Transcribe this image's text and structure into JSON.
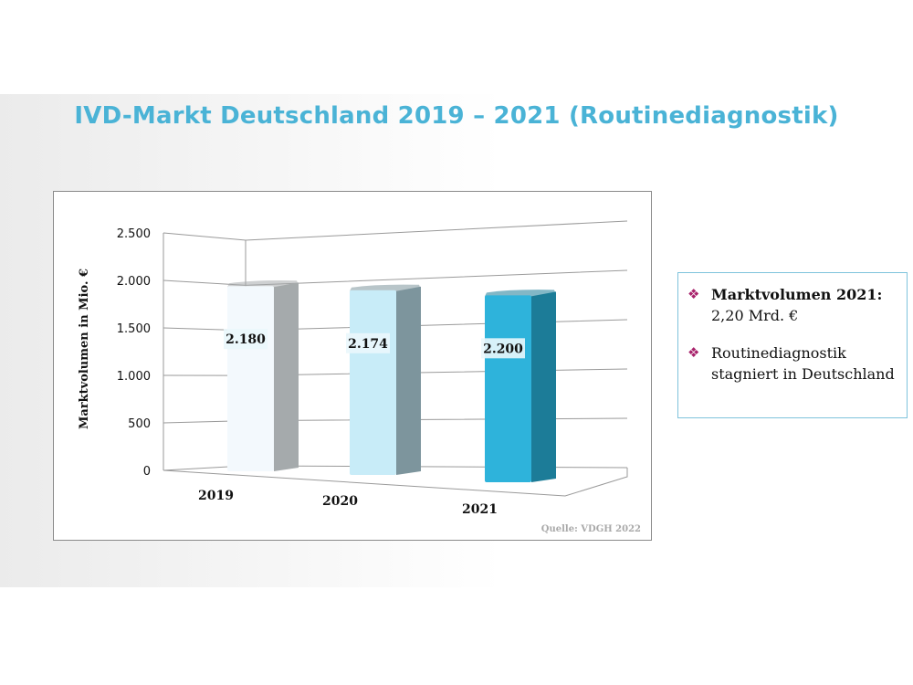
{
  "slide": {
    "title": "IVD-Markt Deutschland 2019 – 2021 (Routinediagnostik)"
  },
  "chart_data": {
    "type": "bar",
    "categories": [
      "2019",
      "2020",
      "2021"
    ],
    "values": [
      2180,
      2174,
      2200
    ],
    "data_labels": [
      "2.180",
      "2.174",
      "2.200"
    ],
    "ylabel": "Marktvolumen in Mio. €",
    "ylim": [
      0,
      2500
    ],
    "yticks": [
      0,
      500,
      1000,
      1500,
      2000,
      2500
    ],
    "ytick_labels": [
      "0",
      "500",
      "1.000",
      "1.500",
      "2.000",
      "2.500"
    ],
    "grid": true,
    "style": "3d-columns",
    "bar_colors": [
      "#f3f9fd",
      "#c8ecf8",
      "#2eb3db"
    ],
    "side_colors": [
      "#a5aaac",
      "#7d959d",
      "#1c7c98"
    ],
    "source": "Quelle: VDGH 2022"
  },
  "info_box": {
    "items": [
      {
        "icon": "diamond-bullet-icon",
        "bold": "Marktvolumen 2021:",
        "text": "2,20 Mrd. €"
      },
      {
        "icon": "diamond-bullet-icon",
        "bold": "",
        "text": "Routinediagnostik stagniert in Deutschland"
      }
    ],
    "bullet_color": "#a8226b",
    "border_color": "#7fc3dc"
  }
}
